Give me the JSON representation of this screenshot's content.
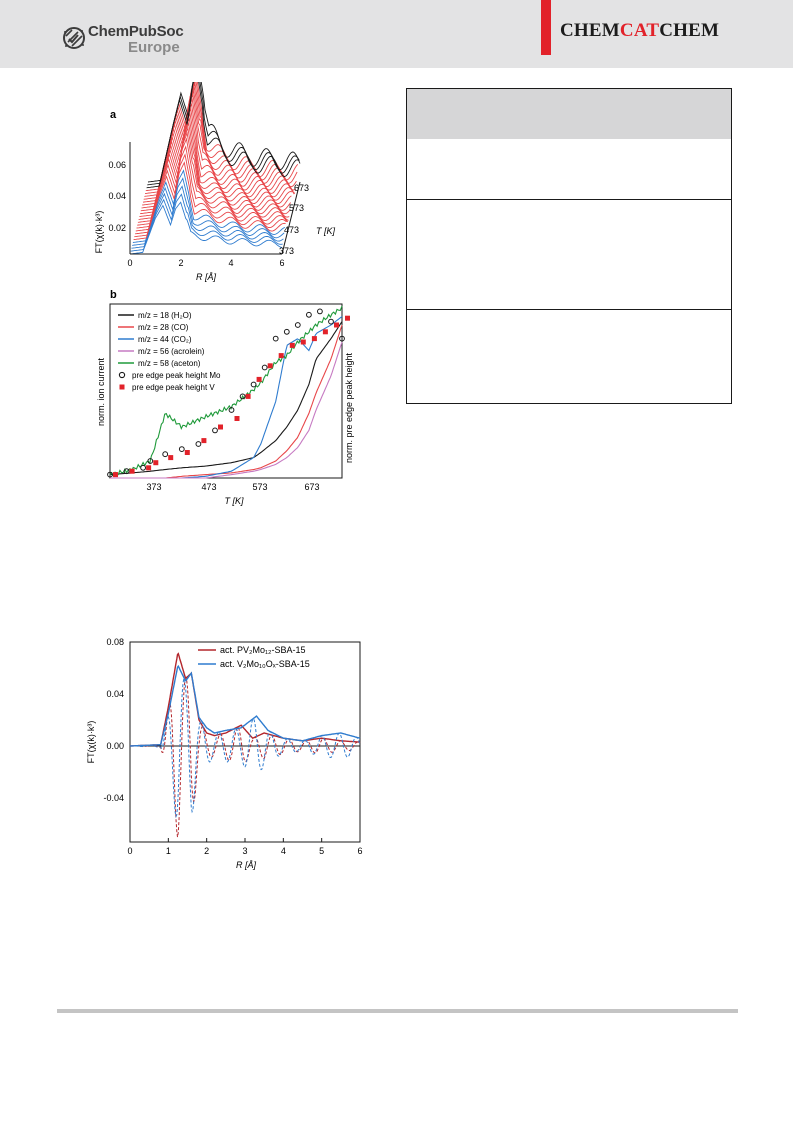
{
  "header": {
    "publisher_line1": "ChemPubSoc",
    "publisher_line2": "Europe",
    "journal_part1": "CHEM",
    "journal_part2": "CAT",
    "journal_part3": "CHEM",
    "colors": {
      "band": "#e3e3e4",
      "accent": "#e2222a"
    }
  },
  "figure_a": {
    "panel_label": "a",
    "ylabel": "FT(χ(k)·k³)",
    "xlabel": "R [Å]",
    "zlabel": "T [K]",
    "y_ticks": [
      "0.06",
      "0.04",
      "0.02"
    ],
    "x_ticks": [
      "0",
      "2",
      "4",
      "6"
    ],
    "t_ticks": [
      "673",
      "573",
      "473",
      "373"
    ]
  },
  "figure_b": {
    "panel_label": "b",
    "ylabel_left": "norm. ion current",
    "ylabel_right": "norm. pre edge peak height",
    "xlabel": "T [K]",
    "x_ticks": [
      "373",
      "473",
      "573",
      "673"
    ],
    "legend": [
      {
        "label": "m/z = 18 (H₂O)",
        "color": "#1a1a1a"
      },
      {
        "label": "m/z = 28 (CO)",
        "color": "#e8474a"
      },
      {
        "label": "m/z = 44 (CO₂)",
        "color": "#2f7ccf"
      },
      {
        "label": "m/z = 56 (acrolein)",
        "color": "#c67ac2"
      },
      {
        "label": "m/z = 58 (aceton)",
        "color": "#1f9a3a"
      },
      {
        "label": "pre edge peak height Mo",
        "color": "#1a1a1a"
      },
      {
        "label": "pre edge peak height V",
        "color": "#e2222a"
      }
    ]
  },
  "figure_c": {
    "ylabel": "FT(χ(k)·k³)",
    "xlabel": "R [Å]",
    "y_ticks": [
      "0.08",
      "0.04",
      "0.00",
      "-0.04"
    ],
    "x_ticks": [
      "0",
      "1",
      "2",
      "3",
      "4",
      "5",
      "6"
    ],
    "legend": [
      {
        "label": "act. PV₂Mo₁₂-SBA-15",
        "color": "#b3262c"
      },
      {
        "label": "act. V₂Mo₁₀Oₓ-SBA-15",
        "color": "#2f7ccf"
      }
    ]
  },
  "chart_data": [
    {
      "type": "line",
      "xlabel": "R [Å]",
      "ylabel": "FT(χ(k)·k³)",
      "xlim": [
        0,
        6
      ],
      "ylim": [
        0,
        0.08
      ],
      "series": [
        {
          "name": "373",
          "x": [
            0,
            0.5,
            1.0,
            1.3,
            1.6,
            1.8,
            2.0,
            2.4,
            3.0,
            4.0,
            5.0,
            6.0
          ],
          "values": [
            0,
            0.001,
            0.022,
            0.03,
            0.018,
            0.028,
            0.032,
            0.012,
            0.01,
            0.008,
            0.007,
            0.006
          ]
        },
        {
          "name": "473",
          "x": [
            0,
            0.5,
            1.0,
            1.3,
            1.6,
            1.8,
            2.0,
            2.4,
            3.0,
            4.0,
            5.0,
            6.0
          ],
          "values": [
            0,
            0.001,
            0.03,
            0.045,
            0.03,
            0.05,
            0.058,
            0.022,
            0.018,
            0.012,
            0.01,
            0.008
          ]
        },
        {
          "name": "573",
          "x": [
            0,
            0.5,
            1.0,
            1.3,
            1.6,
            1.8,
            2.0,
            2.4,
            3.0,
            4.0,
            5.0,
            6.0
          ],
          "values": [
            0,
            0.001,
            0.034,
            0.052,
            0.036,
            0.06,
            0.068,
            0.028,
            0.02,
            0.014,
            0.012,
            0.01
          ]
        },
        {
          "name": "673",
          "x": [
            0,
            0.5,
            1.0,
            1.3,
            1.6,
            1.8,
            2.0,
            2.4,
            3.0,
            4.0,
            5.0,
            6.0
          ],
          "values": [
            0,
            0.001,
            0.036,
            0.055,
            0.04,
            0.064,
            0.072,
            0.032,
            0.022,
            0.016,
            0.014,
            0.012
          ]
        }
      ]
    },
    {
      "type": "line",
      "xlabel": "T [K]",
      "ylabel": "norm. ion current",
      "xlim": [
        300,
        720
      ],
      "x": [
        300,
        340,
        373,
        400,
        430,
        473,
        520,
        560,
        573,
        600,
        620,
        640,
        660,
        673,
        700,
        720
      ],
      "series": [
        {
          "name": "m/z = 18 (H₂O)",
          "values": [
            0.02,
            0.03,
            0.04,
            0.05,
            0.06,
            0.07,
            0.09,
            0.12,
            0.15,
            0.22,
            0.3,
            0.4,
            0.55,
            0.7,
            0.82,
            0.92
          ]
        },
        {
          "name": "m/z = 28 (CO)",
          "values": [
            0.0,
            0.0,
            0.0,
            0.0,
            0.01,
            0.02,
            0.03,
            0.05,
            0.06,
            0.1,
            0.16,
            0.24,
            0.38,
            0.5,
            0.7,
            0.9
          ]
        },
        {
          "name": "m/z = 44 (CO₂)",
          "values": [
            0.0,
            0.0,
            0.0,
            0.0,
            0.0,
            0.01,
            0.04,
            0.12,
            0.2,
            0.45,
            0.78,
            0.82,
            0.75,
            0.85,
            0.9,
            0.95
          ]
        },
        {
          "name": "m/z = 56 (acrolein)",
          "values": [
            0.0,
            0.0,
            0.0,
            0.0,
            0.0,
            0.0,
            0.02,
            0.04,
            0.05,
            0.08,
            0.12,
            0.18,
            0.28,
            0.4,
            0.6,
            0.8
          ]
        },
        {
          "name": "m/z = 58 (aceton)",
          "values": [
            0.02,
            0.05,
            0.1,
            0.38,
            0.3,
            0.36,
            0.42,
            0.52,
            0.56,
            0.68,
            0.72,
            0.8,
            0.86,
            0.9,
            0.96,
            1.0
          ]
        }
      ],
      "markers": [
        {
          "name": "pre edge peak height Mo",
          "x": [
            300,
            330,
            360,
            373,
            400,
            430,
            460,
            490,
            520,
            540,
            560,
            580,
            600,
            620,
            640,
            660,
            680,
            700,
            720
          ],
          "values": [
            0.02,
            0.04,
            0.06,
            0.1,
            0.14,
            0.17,
            0.2,
            0.28,
            0.4,
            0.48,
            0.55,
            0.65,
            0.82,
            0.86,
            0.9,
            0.96,
            0.98,
            0.92,
            0.82
          ]
        },
        {
          "name": "pre edge peak height V",
          "x": [
            300,
            330,
            360,
            373,
            400,
            430,
            460,
            490,
            520,
            540,
            560,
            580,
            600,
            620,
            640,
            660,
            680,
            700,
            720
          ],
          "values": [
            0.02,
            0.04,
            0.06,
            0.09,
            0.12,
            0.15,
            0.22,
            0.3,
            0.35,
            0.48,
            0.58,
            0.66,
            0.72,
            0.78,
            0.8,
            0.82,
            0.86,
            0.9,
            0.94
          ]
        }
      ]
    },
    {
      "type": "line",
      "xlabel": "R [Å]",
      "ylabel": "FT(χ(k)·k³)",
      "xlim": [
        0,
        6
      ],
      "ylim": [
        -0.065,
        0.08
      ],
      "series": [
        {
          "name": "act. PV₂Mo₁₂-SBA-15",
          "x": [
            0,
            0.8,
            1.0,
            1.25,
            1.45,
            1.6,
            1.8,
            2.0,
            2.2,
            2.5,
            2.9,
            3.2,
            3.5,
            4.0,
            4.5,
            5.0,
            5.5,
            6.0
          ],
          "values": [
            0,
            0.001,
            0.03,
            0.072,
            0.052,
            0.056,
            0.02,
            0.01,
            0.008,
            0.01,
            0.016,
            0.006,
            0.01,
            0.006,
            0.004,
            0.006,
            0.004,
            0.003
          ]
        },
        {
          "name": "act. V₂Mo₁₀Oₓ-SBA-15",
          "x": [
            0,
            0.8,
            1.0,
            1.25,
            1.45,
            1.6,
            1.8,
            2.0,
            2.2,
            2.5,
            2.9,
            3.3,
            3.6,
            4.0,
            4.5,
            5.0,
            5.5,
            6.0
          ],
          "values": [
            0,
            0.001,
            0.025,
            0.062,
            0.05,
            0.056,
            0.022,
            0.014,
            0.01,
            0.012,
            0.014,
            0.023,
            0.012,
            0.006,
            0.004,
            0.008,
            0.01,
            0.006
          ]
        }
      ]
    }
  ]
}
